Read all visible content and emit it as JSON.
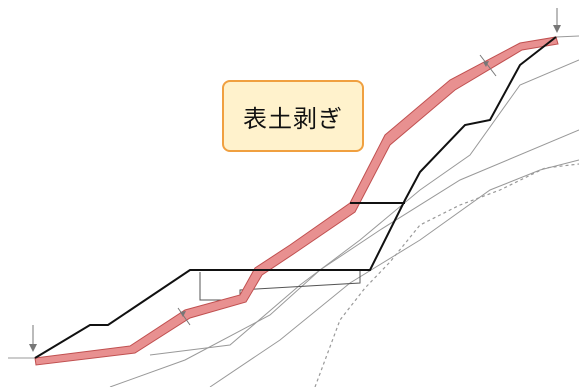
{
  "label": {
    "text": "表土剥ぎ",
    "fill_color": "#fff2cc",
    "border_color": "#f0a040"
  },
  "colors": {
    "stripped_topsoil": "#e89090",
    "stripped_topsoil_outline": "#c05050",
    "cut_profile": "#111111",
    "ground_lines": "#999999",
    "dotted_line": "#999999",
    "arrows": "#777777"
  }
}
